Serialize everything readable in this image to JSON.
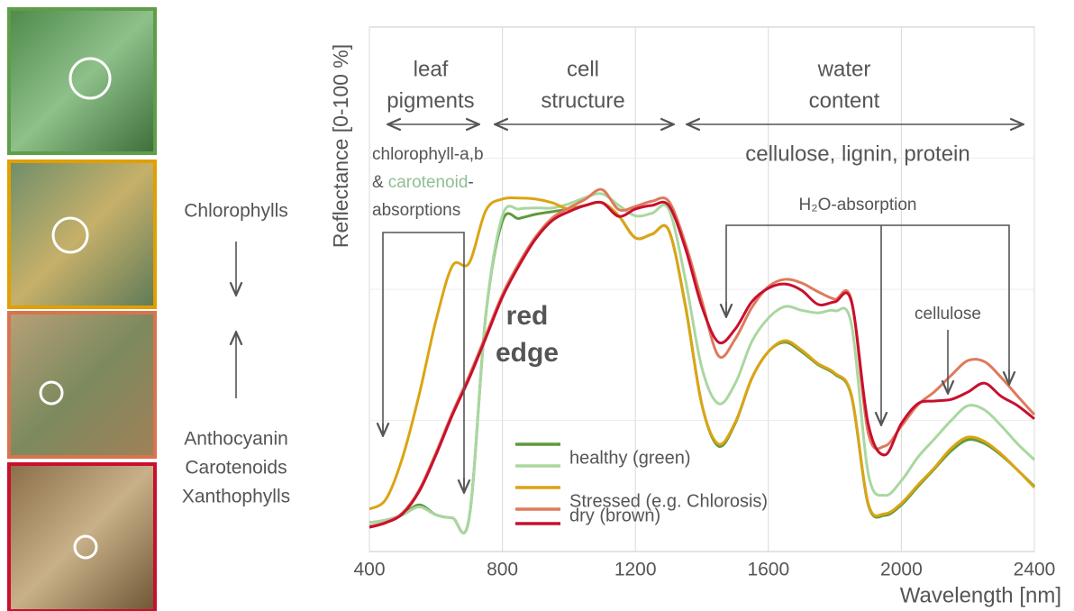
{
  "side_panel": {
    "top_label": "Chlorophylls",
    "bottom_labels": [
      "Anthocyanin",
      "Carotenoids",
      "Xanthophylls"
    ]
  },
  "chart_data": {
    "type": "line",
    "xlabel": "Wavelength [nm]",
    "ylabel": "Reflectance [0-100 %]",
    "xlim": [
      400,
      2400
    ],
    "xticks": [
      400,
      800,
      1200,
      1600,
      2000,
      2400
    ],
    "ylim": [
      0,
      100
    ],
    "yticks": [
      25,
      50,
      75
    ],
    "grid": true,
    "x": [
      400,
      450,
      500,
      550,
      600,
      650,
      700,
      750,
      800,
      850,
      900,
      950,
      1000,
      1050,
      1100,
      1150,
      1200,
      1250,
      1300,
      1350,
      1400,
      1450,
      1500,
      1550,
      1600,
      1650,
      1700,
      1750,
      1800,
      1850,
      1900,
      1950,
      2000,
      2050,
      2100,
      2150,
      2200,
      2250,
      2300,
      2350,
      2400
    ],
    "series": [
      {
        "name": "healthy (green)",
        "color": "#5e9a3c",
        "values": [
          5.5,
          6,
          7,
          8.9,
          7,
          6.4,
          6.4,
          45,
          63,
          63.5,
          64.3,
          64.8,
          65.3,
          66,
          66.5,
          64,
          59.8,
          60.5,
          61.3,
          47,
          28,
          20.1,
          24.4,
          33,
          38.1,
          39.9,
          38.1,
          35.6,
          33.8,
          29.6,
          9,
          6.9,
          8.9,
          12.4,
          15.8,
          19.2,
          21.3,
          20.6,
          18.4,
          15.5,
          12.4
        ]
      },
      {
        "name": null,
        "color": "#a9d7a0",
        "values": [
          5.5,
          6,
          7,
          8.5,
          7,
          6.4,
          6.4,
          45,
          64,
          65.3,
          65.5,
          65.5,
          66.3,
          67.5,
          68.2,
          66,
          64,
          64.5,
          65.3,
          52,
          35,
          28.2,
          32,
          40,
          44.5,
          46.7,
          46,
          45.5,
          45.9,
          43.3,
          15,
          10.7,
          13.5,
          18,
          21.5,
          25,
          27.8,
          27,
          24,
          20.5,
          17.5
        ]
      },
      {
        "name": "Stressed (e.g. Chlorosis)",
        "color": "#dca414",
        "values": [
          8.1,
          10,
          18,
          30,
          44,
          54.5,
          55,
          65,
          67.2,
          67.4,
          67.2,
          66.5,
          65.3,
          66,
          66.5,
          64,
          59.8,
          60.5,
          61.3,
          47,
          28,
          20.5,
          24.6,
          33,
          38.1,
          40.2,
          38.4,
          35.8,
          34,
          29.8,
          9.2,
          7.2,
          9.2,
          12.7,
          16,
          19.7,
          21.8,
          21,
          18.6,
          15.5,
          12.2
        ]
      },
      {
        "name": null,
        "color": "#de7a5c",
        "values": [
          4.8,
          5.6,
          7.4,
          11.8,
          18.8,
          26.5,
          33.5,
          41.2,
          49,
          55,
          60,
          63.6,
          65.5,
          67.2,
          69,
          65.2,
          65.8,
          66.8,
          66.8,
          58.8,
          47.8,
          37.3,
          40.5,
          46.5,
          50.5,
          51.9,
          51.2,
          49.5,
          48.1,
          47.9,
          22.7,
          20.1,
          23.9,
          28,
          30.5,
          33.6,
          36.4,
          36.2,
          33.2,
          29.6,
          26.1
        ]
      },
      {
        "name": "dry (brown)",
        "color": "#c8102e",
        "values": [
          4.6,
          5.5,
          7.2,
          11.5,
          18.4,
          26.1,
          33,
          40.7,
          48.5,
          54.5,
          59.6,
          63.1,
          64.8,
          66,
          66.5,
          63.9,
          65.3,
          66,
          66,
          57.9,
          46.7,
          39.9,
          42.4,
          47.6,
          50.2,
          51,
          49.8,
          47.1,
          47.6,
          47.6,
          24.4,
          18.4,
          24.4,
          28.2,
          28.7,
          29,
          30.4,
          32.1,
          29.6,
          27.8,
          25.3
        ]
      }
    ],
    "annotations": [
      "leaf",
      "pigments",
      "cell",
      "structure",
      "water",
      "content",
      "cellulose, lignin, protein",
      "chlorophyll-a,b",
      "&",
      "carotenoid",
      "-",
      "absorptions",
      "red",
      "edge",
      "H₂O-absorption",
      "cellulose"
    ]
  }
}
